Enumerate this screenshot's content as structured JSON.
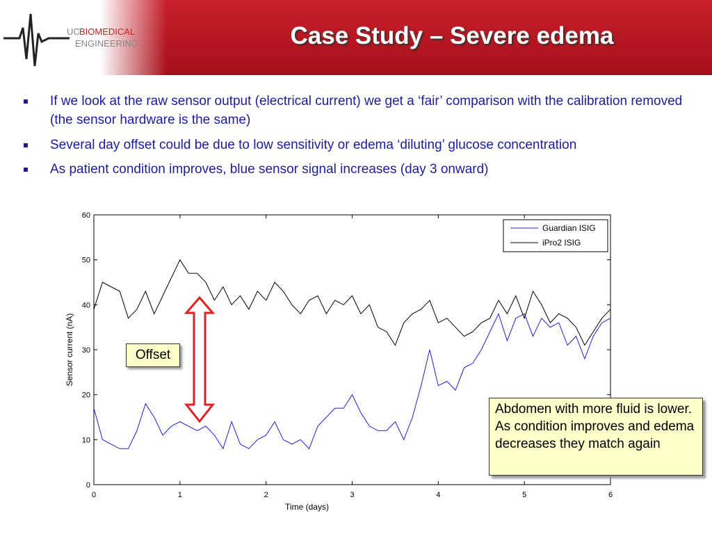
{
  "logo": {
    "prefix": "UC",
    "word1": "BIOMEDICAL",
    "word2": "ENGINEERING"
  },
  "header": {
    "title": "Case Study – Severe edema"
  },
  "bullets": [
    "If we look at the raw sensor output (electrical current) we get a ‘fair’ comparison with the calibration removed (the sensor hardware is the same)",
    "Several day offset could be due to low sensitivity or edema ‘diluting’ glucose concentration",
    "As patient condition improves, blue sensor signal increases (day 3 onward)"
  ],
  "chart_data": {
    "type": "line",
    "xlabel": "Time (days)",
    "ylabel": "Sensor current (nA)",
    "x": [
      0,
      0.1,
      0.2,
      0.3,
      0.4,
      0.5,
      0.6,
      0.7,
      0.8,
      0.9,
      1,
      1.1,
      1.2,
      1.3,
      1.4,
      1.5,
      1.6,
      1.7,
      1.8,
      1.9,
      2,
      2.1,
      2.2,
      2.3,
      2.4,
      2.5,
      2.6,
      2.7,
      2.8,
      2.9,
      3,
      3.1,
      3.2,
      3.3,
      3.4,
      3.5,
      3.6,
      3.7,
      3.8,
      3.9,
      4,
      4.1,
      4.2,
      4.3,
      4.4,
      4.5,
      4.6,
      4.7,
      4.8,
      4.9,
      5,
      5.1,
      5.2,
      5.3,
      5.4,
      5.5,
      5.6,
      5.7,
      5.8,
      5.9,
      6
    ],
    "series": [
      {
        "name": "Guardian ISIG",
        "color": "#1f1fd6",
        "values": [
          17,
          10,
          9,
          8,
          8,
          12,
          18,
          15,
          11,
          13,
          14,
          13,
          12,
          13,
          11,
          8,
          14,
          9,
          8,
          10,
          11,
          14,
          10,
          9,
          10,
          8,
          13,
          15,
          17,
          17,
          20,
          16,
          13,
          12,
          12,
          14,
          10,
          15,
          22,
          30,
          22,
          23,
          21,
          26,
          27,
          30,
          34,
          38,
          32,
          37,
          38,
          33,
          37,
          35,
          36,
          31,
          33,
          28,
          33,
          36,
          37
        ]
      },
      {
        "name": "iPro2 ISIG",
        "color": "#000000",
        "values": [
          39,
          45,
          44,
          43,
          37,
          39,
          43,
          38,
          42,
          46,
          50,
          47,
          47,
          45,
          41,
          44,
          40,
          42,
          39,
          43,
          41,
          45,
          43,
          40,
          38,
          41,
          42,
          38,
          41,
          40,
          42,
          38,
          40,
          35,
          34,
          31,
          36,
          38,
          39,
          41,
          36,
          37,
          35,
          33,
          34,
          36,
          37,
          41,
          38,
          42,
          37,
          43,
          40,
          36,
          38,
          37,
          35,
          31,
          34,
          37,
          39
        ]
      }
    ],
    "xlim": [
      0,
      6
    ],
    "xticks": [
      0,
      1,
      2,
      3,
      4,
      5,
      6
    ],
    "ylim": [
      0,
      60
    ],
    "yticks": [
      0,
      10,
      20,
      30,
      40,
      50,
      60
    ],
    "grid": false,
    "legend": "upper right",
    "annotations": [
      "Offset",
      "Abdomen with more fluid is lower. As condition improves and edema decreases they match again"
    ]
  }
}
